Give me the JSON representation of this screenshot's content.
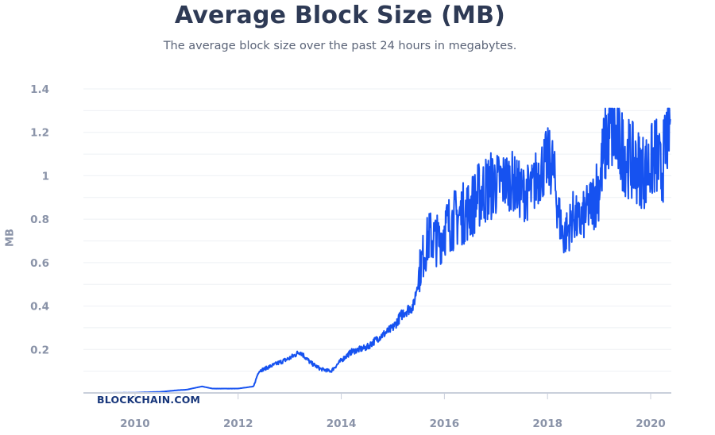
{
  "chart_data": {
    "type": "line",
    "title": "Average Block Size (MB)",
    "subtitle": "The average block size over the past 24 hours in megabytes.",
    "ylabel": "MB",
    "xlabel": "",
    "xlim": [
      2009.0,
      2020.4
    ],
    "ylim": [
      0,
      1.4
    ],
    "x_ticks": [
      "2010",
      "2012",
      "2014",
      "2016",
      "2018",
      "2020"
    ],
    "y_ticks": [
      "0.2",
      "0.4",
      "0.6",
      "0.8",
      "1",
      "1.2",
      "1.4"
    ],
    "grid": true,
    "line_color": "#1652f0",
    "watermark": "BLOCKCHAIN.COM",
    "series": [
      {
        "x": [
          2009.0,
          2009.5,
          2010.0,
          2010.5,
          2010.8,
          2011.0,
          2011.3,
          2011.5,
          2011.8,
          2012.0,
          2012.3,
          2012.4,
          2012.5,
          2012.7,
          2013.0,
          2013.2,
          2013.4,
          2013.6,
          2013.8,
          2014.0,
          2014.2,
          2014.5,
          2014.7,
          2015.0,
          2015.2,
          2015.4,
          2015.55,
          2015.7,
          2015.9,
          2016.0,
          2016.2,
          2016.5,
          2016.7,
          2017.0,
          2017.3,
          2017.5,
          2017.7,
          2017.8,
          2018.0,
          2018.1,
          2018.2,
          2018.3,
          2018.4,
          2018.5,
          2018.6,
          2018.8,
          2019.0,
          2019.1,
          2019.2,
          2019.3,
          2019.5,
          2019.7,
          2019.9,
          2020.0,
          2020.1,
          2020.2,
          2020.3,
          2020.35,
          2020.38
        ],
        "y": [
          0.0,
          0.0,
          0.001,
          0.005,
          0.012,
          0.015,
          0.03,
          0.02,
          0.02,
          0.02,
          0.03,
          0.1,
          0.11,
          0.13,
          0.16,
          0.19,
          0.14,
          0.11,
          0.1,
          0.15,
          0.19,
          0.21,
          0.25,
          0.3,
          0.37,
          0.4,
          0.6,
          0.72,
          0.7,
          0.76,
          0.8,
          0.85,
          0.92,
          0.97,
          0.98,
          0.92,
          0.93,
          1.0,
          1.07,
          1.05,
          0.85,
          0.72,
          0.75,
          0.82,
          0.78,
          0.85,
          0.96,
          1.12,
          1.22,
          1.18,
          1.1,
          1.05,
          1.02,
          1.05,
          1.1,
          1.0,
          1.15,
          1.25,
          1.27
        ]
      }
    ]
  }
}
